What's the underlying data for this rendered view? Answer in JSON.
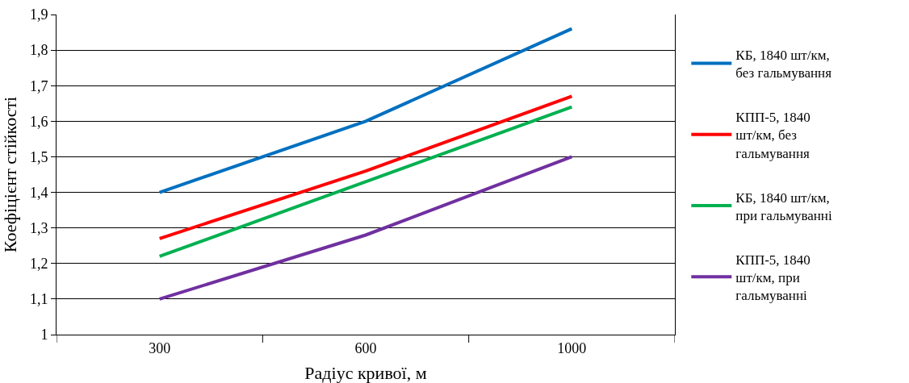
{
  "chart_data": {
    "type": "line",
    "xlabel": "Радіус кривої, м",
    "ylabel": "Коефіцієнт стійкості",
    "categories": [
      "300",
      "600",
      "1000"
    ],
    "series": [
      {
        "name": "КБ, 1840 шт/км, без гальмування",
        "color": "#0070c0",
        "values": [
          1.4,
          1.6,
          1.86
        ]
      },
      {
        "name": "КПП-5, 1840 шт/км, без гальмування",
        "color": "#ff0000",
        "values": [
          1.27,
          1.46,
          1.67
        ]
      },
      {
        "name": "КБ, 1840 шт/км, при гальмуванні",
        "color": "#00b050",
        "values": [
          1.22,
          1.43,
          1.64
        ]
      },
      {
        "name": "КПП-5, 1840 шт/км, при гальмуванні",
        "color": "#7030a0",
        "values": [
          1.1,
          1.28,
          1.5
        ]
      }
    ],
    "ylim": [
      1,
      1.9
    ],
    "yticks": [
      1,
      {
        "value": 1.1,
        "label": "1,1"
      },
      {
        "value": 1.2,
        "label": "1,2"
      },
      {
        "value": 1.3,
        "label": "1,3"
      },
      {
        "value": 1.4,
        "label": "1,4"
      },
      {
        "value": 1.5,
        "label": "1,5"
      },
      {
        "value": 1.6,
        "label": "1,6"
      },
      {
        "value": 1.7,
        "label": "1,7"
      },
      {
        "value": 1.8,
        "label": "1,8"
      },
      {
        "value": 1.9,
        "label": "1,9"
      }
    ],
    "grid": "y",
    "legend": "right",
    "marker": "none",
    "line_style": "solid"
  }
}
